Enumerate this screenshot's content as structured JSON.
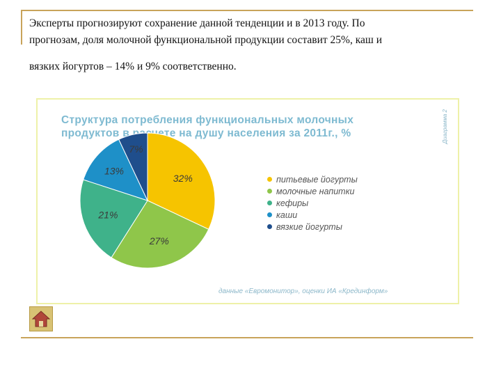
{
  "intro": {
    "line1": "Эксперты прогнозируют сохранение данной тенденции и в 2013 году. По",
    "line2": "прогнозам, доля молочной функциональной продукции составит 25%, каш и",
    "line3": "вязких йогуртов – 14% и 9% соответственно."
  },
  "chart_data": {
    "type": "pie",
    "title": "Структура потребления функциональных молочных продуктов в расчете на душу населения за 2011г., %",
    "categories": [
      "питьевые йогурты",
      "молочные напитки",
      "кефиры",
      "каши",
      "вязкие йогурты"
    ],
    "values": [
      32,
      27,
      21,
      13,
      7
    ],
    "value_labels": [
      "32%",
      "27%",
      "21%",
      "13%",
      "7%"
    ],
    "colors": [
      "#f6c400",
      "#8fc64a",
      "#3fb28a",
      "#1e90c8",
      "#1f4e8c"
    ],
    "legend_position": "right",
    "source": "данные «Евромонитор», оценки ИА «Крединформ»",
    "side_label": "Диаграмма 2"
  },
  "nav": {
    "home_icon": "home-icon"
  }
}
